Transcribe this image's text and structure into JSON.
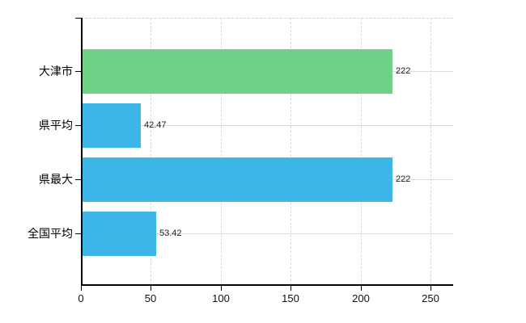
{
  "chart_data": {
    "type": "bar",
    "orientation": "horizontal",
    "title": "",
    "xlabel": "",
    "ylabel": "",
    "categories": [
      "大津市",
      "県平均",
      "県最大",
      "全国平均"
    ],
    "values": [
      222,
      42.47,
      222,
      53.42
    ],
    "value_labels": [
      "222",
      "42.47",
      "222",
      "53.42"
    ],
    "series": [
      {
        "name": "value",
        "values": [
          222,
          42.47,
          222,
          53.42
        ]
      }
    ],
    "bar_colors": [
      "#6fd088",
      "#3cb7e8",
      "#3cb7e8",
      "#3cb7e8"
    ],
    "x_ticks": [
      0,
      50,
      100,
      150,
      200,
      250
    ],
    "x_tick_labels": [
      "0",
      "50",
      "100",
      "150",
      "200",
      "250"
    ],
    "xlim": [
      0,
      266
    ],
    "grid": true,
    "grid_color": "#d9d9d9",
    "axis_color": "#000000",
    "legend": "none",
    "background": "#ffffff"
  }
}
